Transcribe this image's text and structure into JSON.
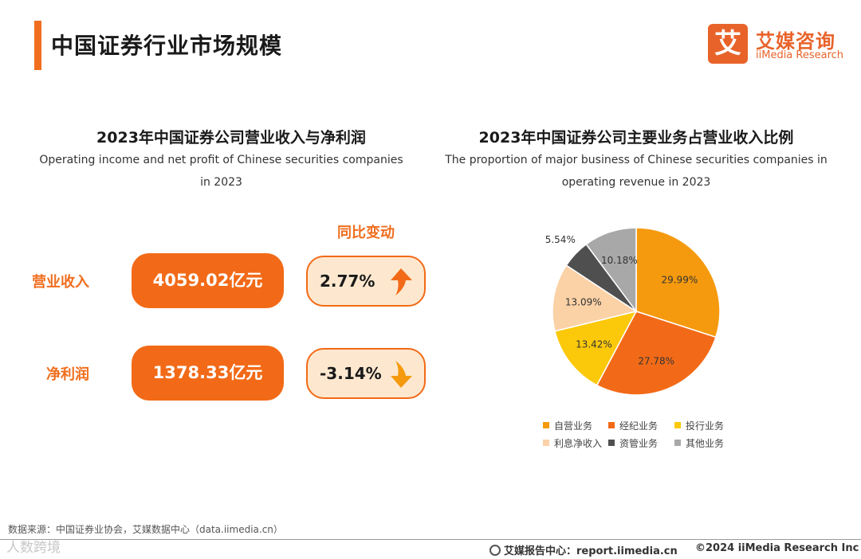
{
  "page": {
    "title": "中国证券行业市场规模"
  },
  "logo": {
    "mark": "艾",
    "name_cn": "艾媒咨询",
    "name_en": "iiMedia Research"
  },
  "left_panel": {
    "title": "2023年中国证券公司营业收入与净利润",
    "subtitle_line1": "Operating income and net profit of Chinese securities companies",
    "subtitle_line2": "in 2023",
    "yoy_label": "同比变动",
    "rows": [
      {
        "label": "营业收入",
        "value": "4059.02亿元",
        "change": "2.77%",
        "direction": "up"
      },
      {
        "label": "净利润",
        "value": "1378.33亿元",
        "change": "-3.14%",
        "direction": "down"
      }
    ]
  },
  "right_panel": {
    "title": "2023年中国证券公司主要业务占营业收入比例",
    "subtitle_line1": "The proportion of major business of Chinese securities companies in",
    "subtitle_line2": "operating revenue in 2023"
  },
  "chart_data": {
    "type": "pie",
    "title": "2023年中国证券公司主要业务占营业收入比例",
    "unit": "%",
    "legend_position": "bottom",
    "slices": [
      {
        "name": "自营业务",
        "value": 29.99,
        "label": "29.99%",
        "color": "#f59a0e"
      },
      {
        "name": "经纪业务",
        "value": 27.78,
        "label": "27.78%",
        "color": "#f26a17"
      },
      {
        "name": "投行业务",
        "value": 13.42,
        "label": "13.42%",
        "color": "#fcc90a"
      },
      {
        "name": "利息净收入",
        "value": 13.09,
        "label": "13.09%",
        "color": "#fbd1a6"
      },
      {
        "name": "资管业务",
        "value": 5.54,
        "label": "5.54%",
        "color": "#4f4f4f"
      },
      {
        "name": "其他业务",
        "value": 10.18,
        "label": "10.18%",
        "color": "#a8a8a8"
      }
    ]
  },
  "colors": {
    "accent": "#f26a17",
    "change_bg": "#fde8cf"
  },
  "footer": {
    "source": "数据来源：中国证券业协会，艾媒数据中心（data.iimedia.cn）",
    "watermark": "人数跨境",
    "report": "艾媒报告中心：report.iimedia.cn",
    "copyright": "©2024  iiMedia Research Inc"
  }
}
